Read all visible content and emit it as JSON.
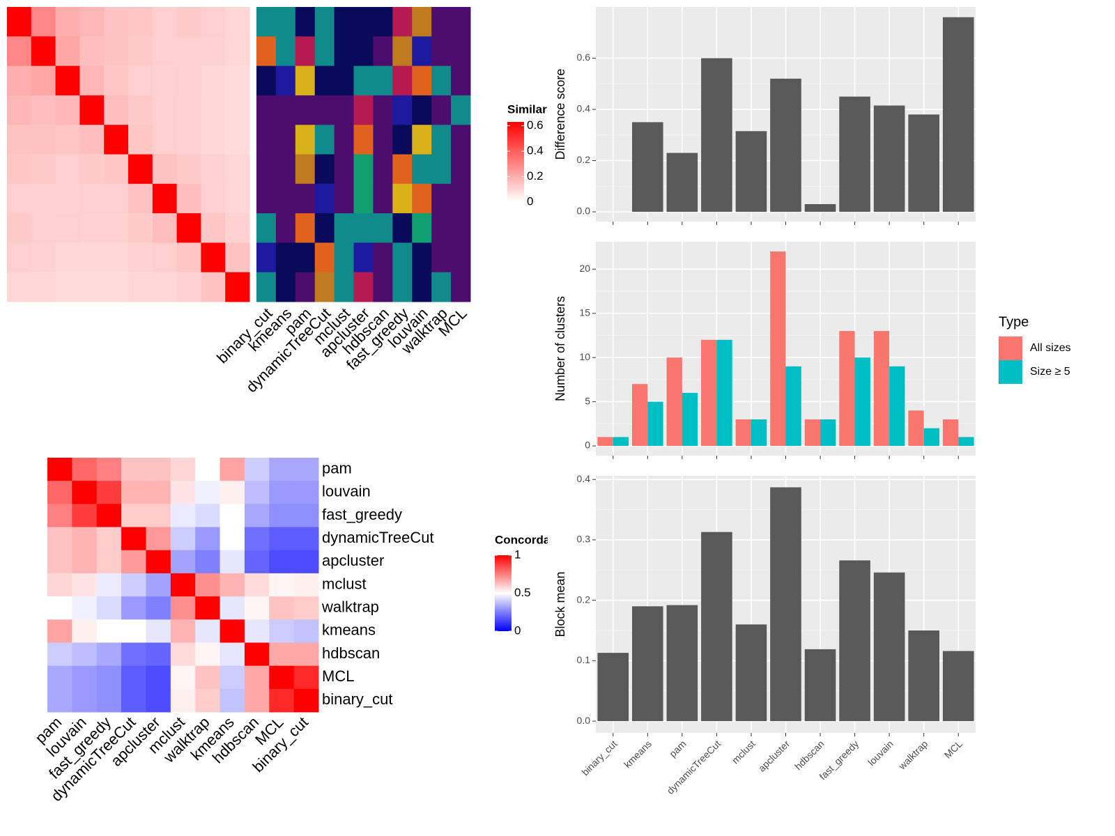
{
  "chart_data": [
    {
      "type": "heatmap",
      "legend_title": "Similarity",
      "zlim": [
        0,
        0.63
      ],
      "legend_ticks": [
        0,
        0.2,
        0.4,
        0.6
      ],
      "colors": [
        "#ffffff",
        "#ff0000"
      ],
      "matrix": [
        [
          0.65,
          0.3,
          0.2,
          0.18,
          0.15,
          0.14,
          0.12,
          0.13,
          0.12,
          0.1
        ],
        [
          0.3,
          0.65,
          0.22,
          0.16,
          0.15,
          0.13,
          0.12,
          0.12,
          0.11,
          0.1
        ],
        [
          0.2,
          0.22,
          0.65,
          0.18,
          0.14,
          0.12,
          0.11,
          0.12,
          0.1,
          0.09
        ],
        [
          0.18,
          0.16,
          0.18,
          0.65,
          0.16,
          0.13,
          0.12,
          0.11,
          0.1,
          0.09
        ],
        [
          0.15,
          0.15,
          0.14,
          0.16,
          0.65,
          0.14,
          0.12,
          0.11,
          0.1,
          0.09
        ],
        [
          0.14,
          0.13,
          0.12,
          0.13,
          0.14,
          0.65,
          0.15,
          0.13,
          0.11,
          0.1
        ],
        [
          0.12,
          0.12,
          0.11,
          0.12,
          0.12,
          0.15,
          0.65,
          0.16,
          0.12,
          0.1
        ],
        [
          0.13,
          0.12,
          0.12,
          0.11,
          0.11,
          0.13,
          0.16,
          0.65,
          0.14,
          0.11
        ],
        [
          0.12,
          0.11,
          0.1,
          0.1,
          0.1,
          0.11,
          0.12,
          0.14,
          0.65,
          0.15
        ],
        [
          0.1,
          0.1,
          0.09,
          0.09,
          0.09,
          0.1,
          0.1,
          0.11,
          0.15,
          0.65
        ]
      ]
    },
    {
      "type": "annotation",
      "categories": [
        "binary_cut",
        "kmeans",
        "pam",
        "dynamicTreeCut",
        "mclust",
        "apcluster",
        "hdbscan",
        "fast_greedy",
        "louvain",
        "walktrap",
        "MCL"
      ],
      "palette": [
        "#4d0d6e",
        "#108a8a",
        "#e0621c",
        "#1e1aa0",
        "#b51a50",
        "#d9b21a",
        "#0a0a5a",
        "#10a070",
        "#c07a20",
        "#178030"
      ],
      "rows": [
        [
          1,
          1,
          6,
          1,
          6,
          6,
          6,
          4,
          8,
          0,
          0
        ],
        [
          2,
          1,
          4,
          1,
          6,
          6,
          0,
          8,
          3,
          0,
          0
        ],
        [
          6,
          3,
          5,
          6,
          6,
          1,
          1,
          4,
          2,
          1,
          0
        ],
        [
          0,
          0,
          0,
          0,
          0,
          4,
          0,
          3,
          6,
          0,
          1
        ],
        [
          0,
          0,
          5,
          1,
          0,
          2,
          0,
          6,
          5,
          1,
          0
        ],
        [
          0,
          0,
          8,
          6,
          0,
          7,
          0,
          2,
          1,
          1,
          0
        ],
        [
          0,
          0,
          0,
          3,
          0,
          7,
          0,
          5,
          2,
          0,
          0
        ],
        [
          1,
          0,
          2,
          6,
          1,
          1,
          1,
          6,
          7,
          0,
          0
        ],
        [
          3,
          6,
          6,
          2,
          1,
          3,
          0,
          1,
          6,
          0,
          0
        ],
        [
          1,
          6,
          0,
          8,
          1,
          4,
          0,
          1,
          6,
          1,
          0
        ]
      ]
    },
    {
      "type": "heatmap",
      "legend_title": "Concordance",
      "zlim": [
        0,
        1
      ],
      "legend_ticks": [
        0,
        0.5,
        1
      ],
      "colors": [
        "#0000ff",
        "#ffffff",
        "#ff0000"
      ],
      "row_labels": [
        "pam",
        "louvain",
        "fast_greedy",
        "dynamicTreeCut",
        "apcluster",
        "mclust",
        "walktrap",
        "kmeans",
        "hdbscan",
        "MCL",
        "binary_cut"
      ],
      "column_labels": [
        "pam",
        "louvain",
        "fast_greedy",
        "dynamicTreeCut",
        "apcluster",
        "mclust",
        "walktrap",
        "kmeans",
        "hdbscan",
        "MCL",
        "binary_cut"
      ],
      "matrix": [
        [
          1,
          0.8,
          0.75,
          0.62,
          0.62,
          0.58,
          0.5,
          0.68,
          0.4,
          0.33,
          0.33
        ],
        [
          0.8,
          1,
          0.88,
          0.65,
          0.65,
          0.55,
          0.47,
          0.53,
          0.37,
          0.3,
          0.3
        ],
        [
          0.75,
          0.88,
          1,
          0.6,
          0.6,
          0.46,
          0.43,
          0.5,
          0.33,
          0.28,
          0.28
        ],
        [
          0.62,
          0.65,
          0.6,
          1,
          0.7,
          0.4,
          0.3,
          0.5,
          0.22,
          0.18,
          0.18
        ],
        [
          0.62,
          0.65,
          0.6,
          0.7,
          1,
          0.32,
          0.25,
          0.45,
          0.2,
          0.15,
          0.15
        ],
        [
          0.58,
          0.55,
          0.46,
          0.4,
          0.32,
          1,
          0.72,
          0.65,
          0.57,
          0.52,
          0.53
        ],
        [
          0.5,
          0.47,
          0.43,
          0.3,
          0.25,
          0.72,
          1,
          0.45,
          0.52,
          0.62,
          0.6
        ],
        [
          0.68,
          0.53,
          0.5,
          0.5,
          0.45,
          0.65,
          0.45,
          1,
          0.45,
          0.4,
          0.38
        ],
        [
          0.4,
          0.37,
          0.33,
          0.22,
          0.2,
          0.57,
          0.52,
          0.45,
          1,
          0.67,
          0.67
        ],
        [
          0.33,
          0.3,
          0.28,
          0.18,
          0.15,
          0.52,
          0.62,
          0.4,
          0.67,
          1,
          0.92
        ],
        [
          0.33,
          0.3,
          0.28,
          0.18,
          0.15,
          0.53,
          0.6,
          0.38,
          0.67,
          0.92,
          1
        ]
      ]
    },
    {
      "type": "bar",
      "y_label": "Difference score",
      "color": "#595959",
      "categories": [
        null,
        null,
        null,
        null,
        null,
        null,
        null,
        null,
        null,
        null,
        null
      ],
      "values": [
        0,
        0.35,
        0.23,
        0.6,
        0.315,
        0.52,
        0.03,
        0.45,
        0.415,
        0.38,
        0.76
      ],
      "ylim": [
        -0.038,
        0.8
      ],
      "yticks": [
        {
          "value": 0,
          "label": "0.0"
        },
        0.2,
        0.4,
        0.6
      ],
      "grid": true
    },
    {
      "type": "grouped_bar",
      "y_label": "Number of clusters",
      "legend_title": "Type",
      "categories": [
        null,
        null,
        null,
        null,
        null,
        null,
        null,
        null,
        null,
        null,
        null
      ],
      "series": [
        {
          "name": "All sizes",
          "color": "#F8766D",
          "values": [
            1,
            7,
            10,
            12,
            3,
            22,
            3,
            13,
            13,
            4,
            3
          ]
        },
        {
          "name": "Size ≥ 5",
          "color": "#00BFC4",
          "values": [
            1,
            5,
            6,
            12,
            3,
            9,
            3,
            10,
            9,
            2,
            1
          ]
        }
      ],
      "ylim": [
        -1.1,
        23.1
      ],
      "yticks": [
        0,
        5,
        10,
        15,
        20
      ],
      "grid": true
    },
    {
      "type": "bar",
      "y_label": "Block mean",
      "color": "#595959",
      "categories": [
        "binary_cut",
        "kmeans",
        "pam",
        "dynamicTreeCut",
        "mclust",
        "apcluster",
        "hdbscan",
        "fast_greedy",
        "louvain",
        "walktrap",
        "MCL"
      ],
      "values": [
        0.113,
        0.19,
        0.192,
        0.313,
        0.16,
        0.387,
        0.119,
        0.266,
        0.246,
        0.15,
        0.116
      ],
      "ylim": [
        -0.0195,
        0.406
      ],
      "yticks": [
        {
          "value": 0,
          "label": "0.0"
        },
        0.1,
        0.2,
        0.3,
        0.4
      ],
      "grid": true
    }
  ]
}
